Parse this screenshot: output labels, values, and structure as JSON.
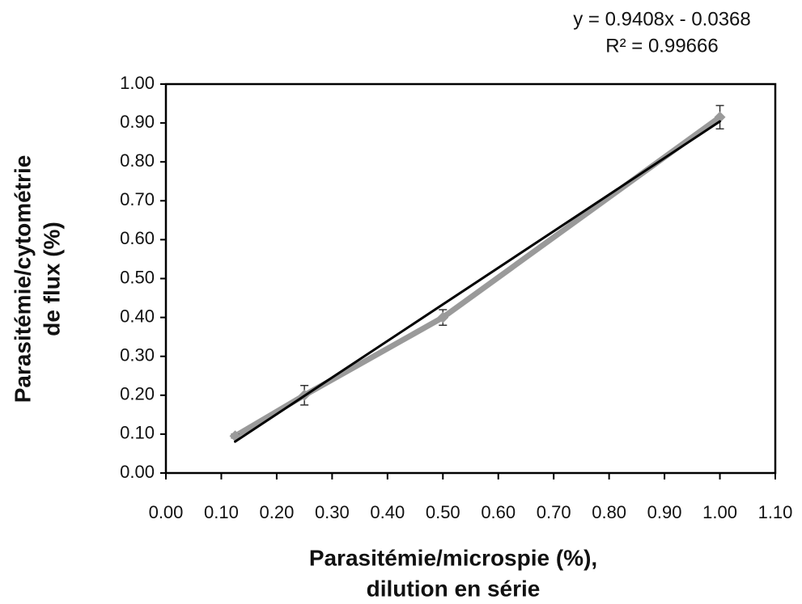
{
  "chart_data": {
    "type": "line",
    "annotations": [
      "y = 0.9408x - 0.0368",
      "R² = 0.99666"
    ],
    "x_label": [
      "Parasitémie/microspie (%),",
      "dilution en série"
    ],
    "y_label": [
      "Parasitémie/cytométrie",
      "de flux (%)"
    ],
    "series": [
      {
        "color": "#9a9a9a",
        "x": [
          0.125,
          0.25,
          0.5,
          1.0
        ],
        "values": [
          0.095,
          0.2,
          0.4,
          0.915
        ],
        "errors": [
          0.005,
          0.025,
          0.02,
          0.03
        ]
      },
      {
        "color": "#000000",
        "trendline": true,
        "x": [
          0.125,
          1.0
        ],
        "values": [
          0.0808,
          0.904
        ]
      }
    ],
    "xlim": [
      0,
      1.1
    ],
    "ylim": [
      0,
      1
    ],
    "xticks": [
      {
        "value": 0,
        "label": "0.00"
      },
      {
        "value": 0.1,
        "label": "0.10"
      },
      {
        "value": 0.2,
        "label": "0.20"
      },
      {
        "value": 0.3,
        "label": "0.30"
      },
      {
        "value": 0.4,
        "label": "0.40"
      },
      {
        "value": 0.5,
        "label": "0.50"
      },
      {
        "value": 0.6,
        "label": "0.60"
      },
      {
        "value": 0.7,
        "label": "0.70"
      },
      {
        "value": 0.8,
        "label": "0.80"
      },
      {
        "value": 0.9,
        "label": "0.90"
      },
      {
        "value": 1,
        "label": "1.00"
      },
      {
        "value": 1.1,
        "label": "1.10"
      }
    ],
    "yticks": [
      {
        "value": 0,
        "label": "0.00"
      },
      {
        "value": 0.1,
        "label": "0.10"
      },
      {
        "value": 0.2,
        "label": "0.20"
      },
      {
        "value": 0.3,
        "label": "0.30"
      },
      {
        "value": 0.4,
        "label": "0.40"
      },
      {
        "value": 0.5,
        "label": "0.50"
      },
      {
        "value": 0.6,
        "label": "0.60"
      },
      {
        "value": 0.7,
        "label": "0.70"
      },
      {
        "value": 0.8,
        "label": "0.80"
      },
      {
        "value": 0.9,
        "label": "0.90"
      },
      {
        "value": 1,
        "label": "1.00"
      }
    ]
  }
}
